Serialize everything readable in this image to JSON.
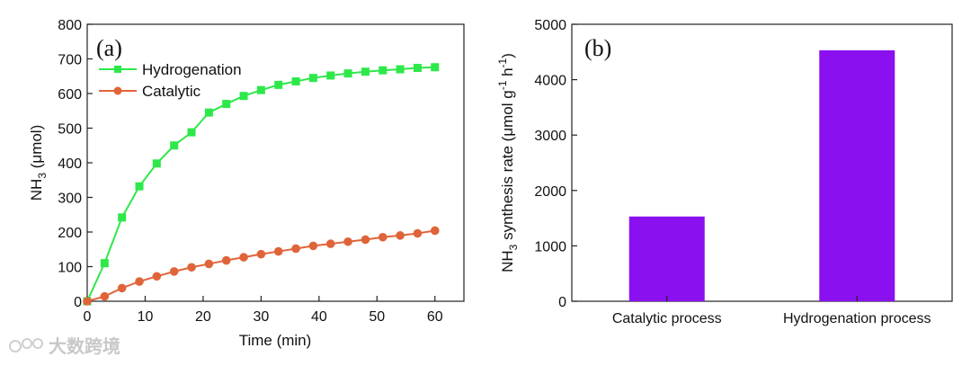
{
  "chart_data": [
    {
      "type": "line",
      "panel_label": "(a)",
      "xlabel": "Time (min)",
      "ylabel_parts": [
        "NH",
        "3",
        " (μmol)"
      ],
      "xlim": [
        0,
        65
      ],
      "ylim": [
        0,
        800
      ],
      "xticks": [
        0,
        10,
        20,
        30,
        40,
        50,
        60
      ],
      "yticks": [
        0,
        100,
        200,
        300,
        400,
        500,
        600,
        700,
        800
      ],
      "legend_position": "top-left",
      "series": [
        {
          "name": "Hydrogenation",
          "color": "#2ee84a",
          "marker": "square",
          "x": [
            0,
            3,
            6,
            9,
            12,
            15,
            18,
            21,
            24,
            27,
            30,
            33,
            36,
            39,
            42,
            45,
            48,
            51,
            54,
            57,
            60
          ],
          "y": [
            0,
            110,
            242,
            332,
            398,
            450,
            488,
            545,
            570,
            593,
            610,
            625,
            635,
            645,
            652,
            658,
            663,
            667,
            670,
            674,
            676
          ]
        },
        {
          "name": "Catalytic",
          "color": "#e0643a",
          "marker": "circle",
          "x": [
            0,
            3,
            6,
            9,
            12,
            15,
            18,
            21,
            24,
            27,
            30,
            33,
            36,
            39,
            42,
            45,
            48,
            51,
            54,
            57,
            60
          ],
          "y": [
            0,
            14,
            38,
            57,
            72,
            86,
            98,
            108,
            118,
            127,
            136,
            144,
            152,
            160,
            166,
            172,
            178,
            185,
            190,
            196,
            204
          ]
        }
      ]
    },
    {
      "type": "bar",
      "panel_label": "(b)",
      "ylabel_parts": [
        "NH",
        "3",
        " synthesis rate (μmol g",
        "-1",
        " h",
        "-1",
        ")"
      ],
      "categories": [
        "Catalytic process",
        "Hydrogenation process"
      ],
      "values": [
        1530,
        4530
      ],
      "bar_color": "#8a10f0",
      "ylim": [
        0,
        5000
      ],
      "yticks": [
        0,
        1000,
        2000,
        3000,
        4000,
        5000
      ]
    }
  ],
  "watermark": "大数跨境"
}
